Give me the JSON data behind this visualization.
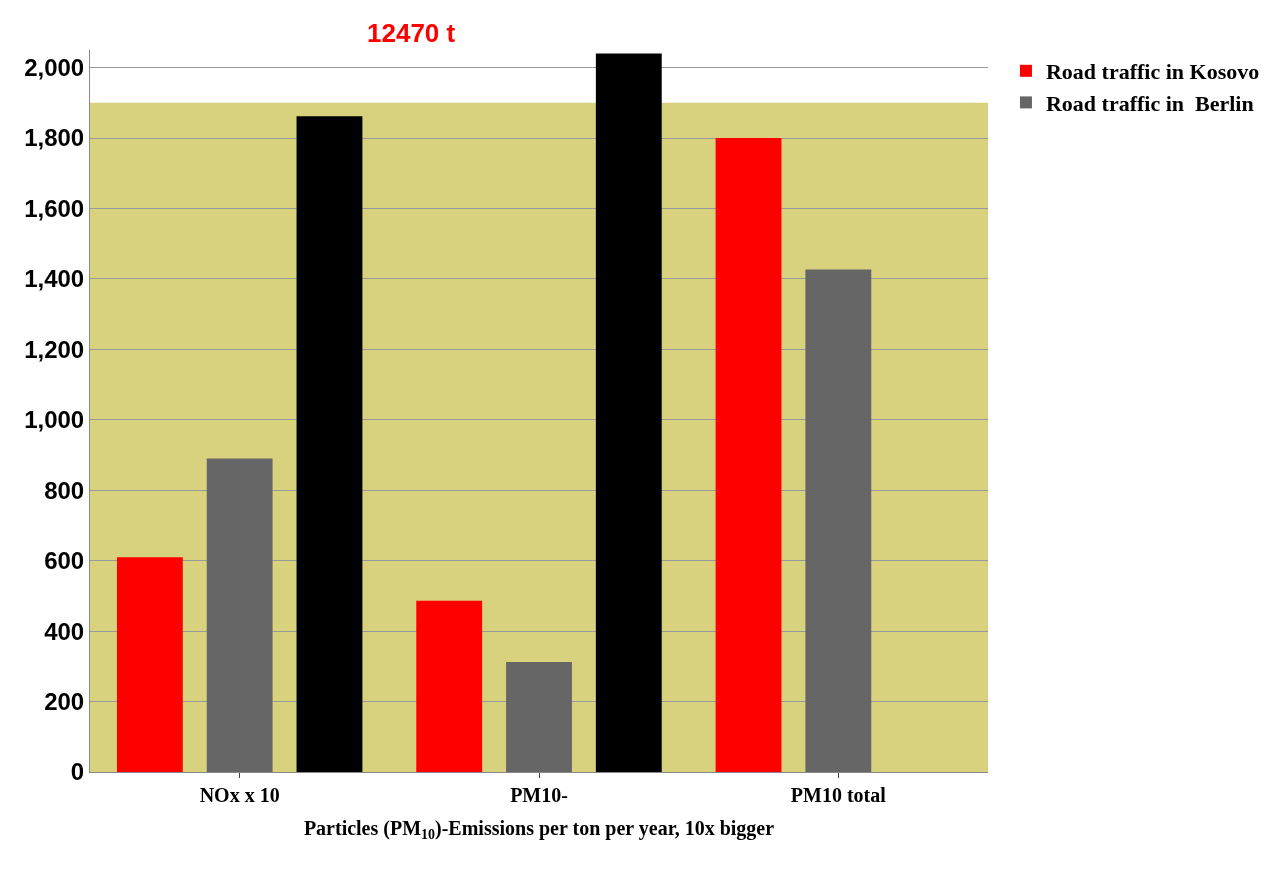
{
  "chart_data": {
    "type": "bar",
    "categories": [
      "NOx x 10",
      "PM10-",
      "PM10 total"
    ],
    "series": [
      {
        "name": "Road traffic in Kosovo",
        "color": "#ff0000",
        "values": [
          610,
          486,
          1800
        ]
      },
      {
        "name": "Road traffic in  Berlin",
        "color": "#666666",
        "values": [
          890,
          312,
          1427
        ]
      },
      {
        "color": "#000000",
        "values": [
          1862,
          2040,
          null
        ]
      }
    ],
    "xlabel": "Particles (PM$_{10}$)-Emissions per ton per year, 10x bigger",
    "annotations": [
      "12470 t"
    ],
    "ylim": [
      0,
      2050
    ],
    "yticks": [
      0,
      200,
      400,
      600,
      800,
      {
        "value": 1000,
        "label": "1,000"
      },
      {
        "value": 1200,
        "label": "1,200"
      },
      {
        "value": 1400,
        "label": "1,400"
      },
      {
        "value": 1600,
        "label": "1,600"
      },
      {
        "value": 1800,
        "label": "1,800"
      },
      {
        "value": 2000,
        "label": "2,000"
      }
    ],
    "bands": [
      {
        "axis": "y",
        "from": 0,
        "to": 1900,
        "color": "#d8d27e"
      }
    ],
    "grid": "y",
    "legend": "top right"
  }
}
